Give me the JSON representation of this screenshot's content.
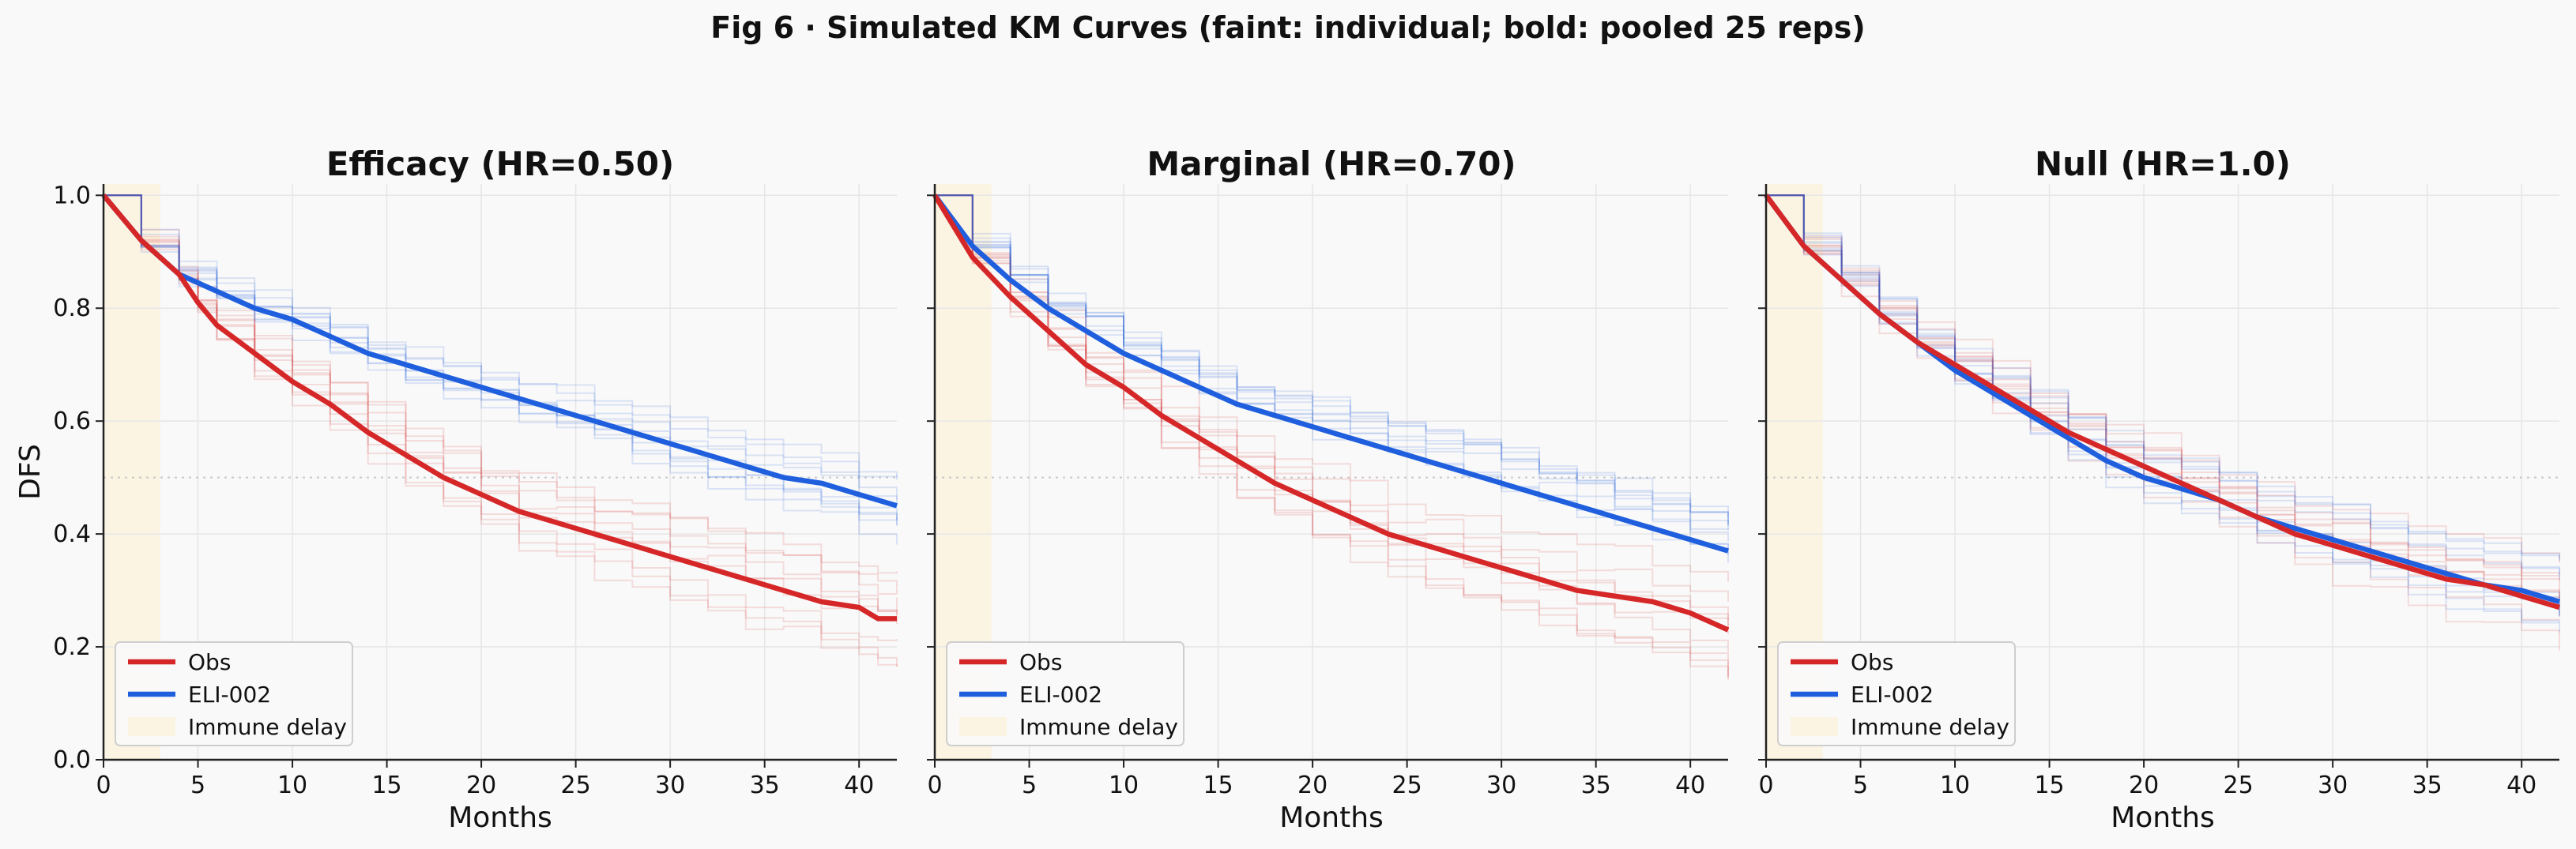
{
  "figure_title": "Fig 6 · Simulated KM Curves (faint: individual; bold: pooled 25 reps)",
  "colors": {
    "obs": "#d62728",
    "eli": "#1f5fde",
    "immune": "#fbf3e0"
  },
  "chart_data": [
    {
      "type": "line",
      "title": "Efficacy (HR=0.50)",
      "xlabel": "Months",
      "ylabel": "DFS",
      "xlim": [
        0,
        42
      ],
      "ylim": [
        0,
        1.02
      ],
      "xticks": [
        "0",
        "5",
        "10",
        "15",
        "20",
        "25",
        "30",
        "35",
        "40"
      ],
      "yticks": [
        "0.0",
        "0.2",
        "0.4",
        "0.6",
        "0.8",
        "1.0"
      ],
      "immune_delay": [
        0,
        3
      ],
      "reference_y": 0.5,
      "legend": [
        "Obs",
        "ELI-002",
        "Immune delay"
      ],
      "legend_position": "lower-left",
      "series": [
        {
          "name": "Obs",
          "x": [
            0,
            2,
            4,
            5,
            6,
            8,
            10,
            12,
            14,
            16,
            18,
            20,
            22,
            24,
            26,
            28,
            30,
            32,
            34,
            36,
            38,
            40,
            41,
            42
          ],
          "values": [
            1.0,
            0.92,
            0.86,
            0.81,
            0.77,
            0.72,
            0.67,
            0.63,
            0.58,
            0.54,
            0.5,
            0.47,
            0.44,
            0.42,
            0.4,
            0.38,
            0.36,
            0.34,
            0.32,
            0.3,
            0.28,
            0.27,
            0.25,
            0.25
          ]
        },
        {
          "name": "ELI-002",
          "x": [
            0,
            2,
            4,
            6,
            8,
            10,
            12,
            14,
            16,
            18,
            20,
            22,
            24,
            26,
            28,
            30,
            32,
            34,
            36,
            38,
            40,
            42
          ],
          "values": [
            1.0,
            0.92,
            0.86,
            0.83,
            0.8,
            0.78,
            0.75,
            0.72,
            0.7,
            0.68,
            0.66,
            0.64,
            0.62,
            0.6,
            0.58,
            0.56,
            0.54,
            0.52,
            0.5,
            0.49,
            0.47,
            0.45
          ]
        }
      ]
    },
    {
      "type": "line",
      "title": "Marginal (HR=0.70)",
      "xlabel": "Months",
      "ylabel": "",
      "xlim": [
        0,
        42
      ],
      "ylim": [
        0,
        1.02
      ],
      "xticks": [
        "0",
        "5",
        "10",
        "15",
        "20",
        "25",
        "30",
        "35",
        "40"
      ],
      "yticks": [
        "0.0",
        "0.2",
        "0.4",
        "0.6",
        "0.8",
        "1.0"
      ],
      "immune_delay": [
        0,
        3
      ],
      "reference_y": 0.5,
      "legend": [
        "Obs",
        "ELI-002",
        "Immune delay"
      ],
      "legend_position": "lower-left",
      "series": [
        {
          "name": "Obs",
          "x": [
            0,
            2,
            4,
            6,
            8,
            10,
            12,
            14,
            16,
            18,
            20,
            22,
            24,
            26,
            28,
            30,
            32,
            34,
            36,
            38,
            40,
            42
          ],
          "values": [
            1.0,
            0.89,
            0.82,
            0.76,
            0.7,
            0.66,
            0.61,
            0.57,
            0.53,
            0.49,
            0.46,
            0.43,
            0.4,
            0.38,
            0.36,
            0.34,
            0.32,
            0.3,
            0.29,
            0.28,
            0.26,
            0.23
          ]
        },
        {
          "name": "ELI-002",
          "x": [
            0,
            2,
            4,
            6,
            8,
            10,
            12,
            14,
            16,
            18,
            20,
            22,
            24,
            26,
            28,
            30,
            32,
            34,
            36,
            38,
            40,
            42
          ],
          "values": [
            1.0,
            0.91,
            0.85,
            0.8,
            0.76,
            0.72,
            0.69,
            0.66,
            0.63,
            0.61,
            0.59,
            0.57,
            0.55,
            0.53,
            0.51,
            0.49,
            0.47,
            0.45,
            0.43,
            0.41,
            0.39,
            0.37
          ]
        }
      ]
    },
    {
      "type": "line",
      "title": "Null (HR=1.0)",
      "xlabel": "Months",
      "ylabel": "",
      "xlim": [
        0,
        42
      ],
      "ylim": [
        0,
        1.02
      ],
      "xticks": [
        "0",
        "5",
        "10",
        "15",
        "20",
        "25",
        "30",
        "35",
        "40"
      ],
      "yticks": [
        "0.0",
        "0.2",
        "0.4",
        "0.6",
        "0.8",
        "1.0"
      ],
      "immune_delay": [
        0,
        3
      ],
      "reference_y": 0.5,
      "legend": [
        "Obs",
        "ELI-002",
        "Immune delay"
      ],
      "legend_position": "lower-left",
      "series": [
        {
          "name": "Obs",
          "x": [
            0,
            2,
            4,
            6,
            8,
            10,
            12,
            14,
            16,
            18,
            20,
            22,
            24,
            26,
            28,
            30,
            32,
            34,
            36,
            38,
            40,
            42
          ],
          "values": [
            1.0,
            0.91,
            0.85,
            0.79,
            0.74,
            0.7,
            0.66,
            0.62,
            0.58,
            0.55,
            0.52,
            0.49,
            0.46,
            0.43,
            0.4,
            0.38,
            0.36,
            0.34,
            0.32,
            0.31,
            0.29,
            0.27
          ]
        },
        {
          "name": "ELI-002",
          "x": [
            0,
            2,
            4,
            6,
            8,
            10,
            12,
            14,
            16,
            18,
            20,
            22,
            24,
            26,
            28,
            30,
            32,
            34,
            36,
            38,
            40,
            42
          ],
          "values": [
            1.0,
            0.91,
            0.85,
            0.79,
            0.74,
            0.69,
            0.65,
            0.61,
            0.57,
            0.53,
            0.5,
            0.48,
            0.46,
            0.43,
            0.41,
            0.39,
            0.37,
            0.35,
            0.33,
            0.31,
            0.3,
            0.28
          ]
        }
      ]
    }
  ]
}
